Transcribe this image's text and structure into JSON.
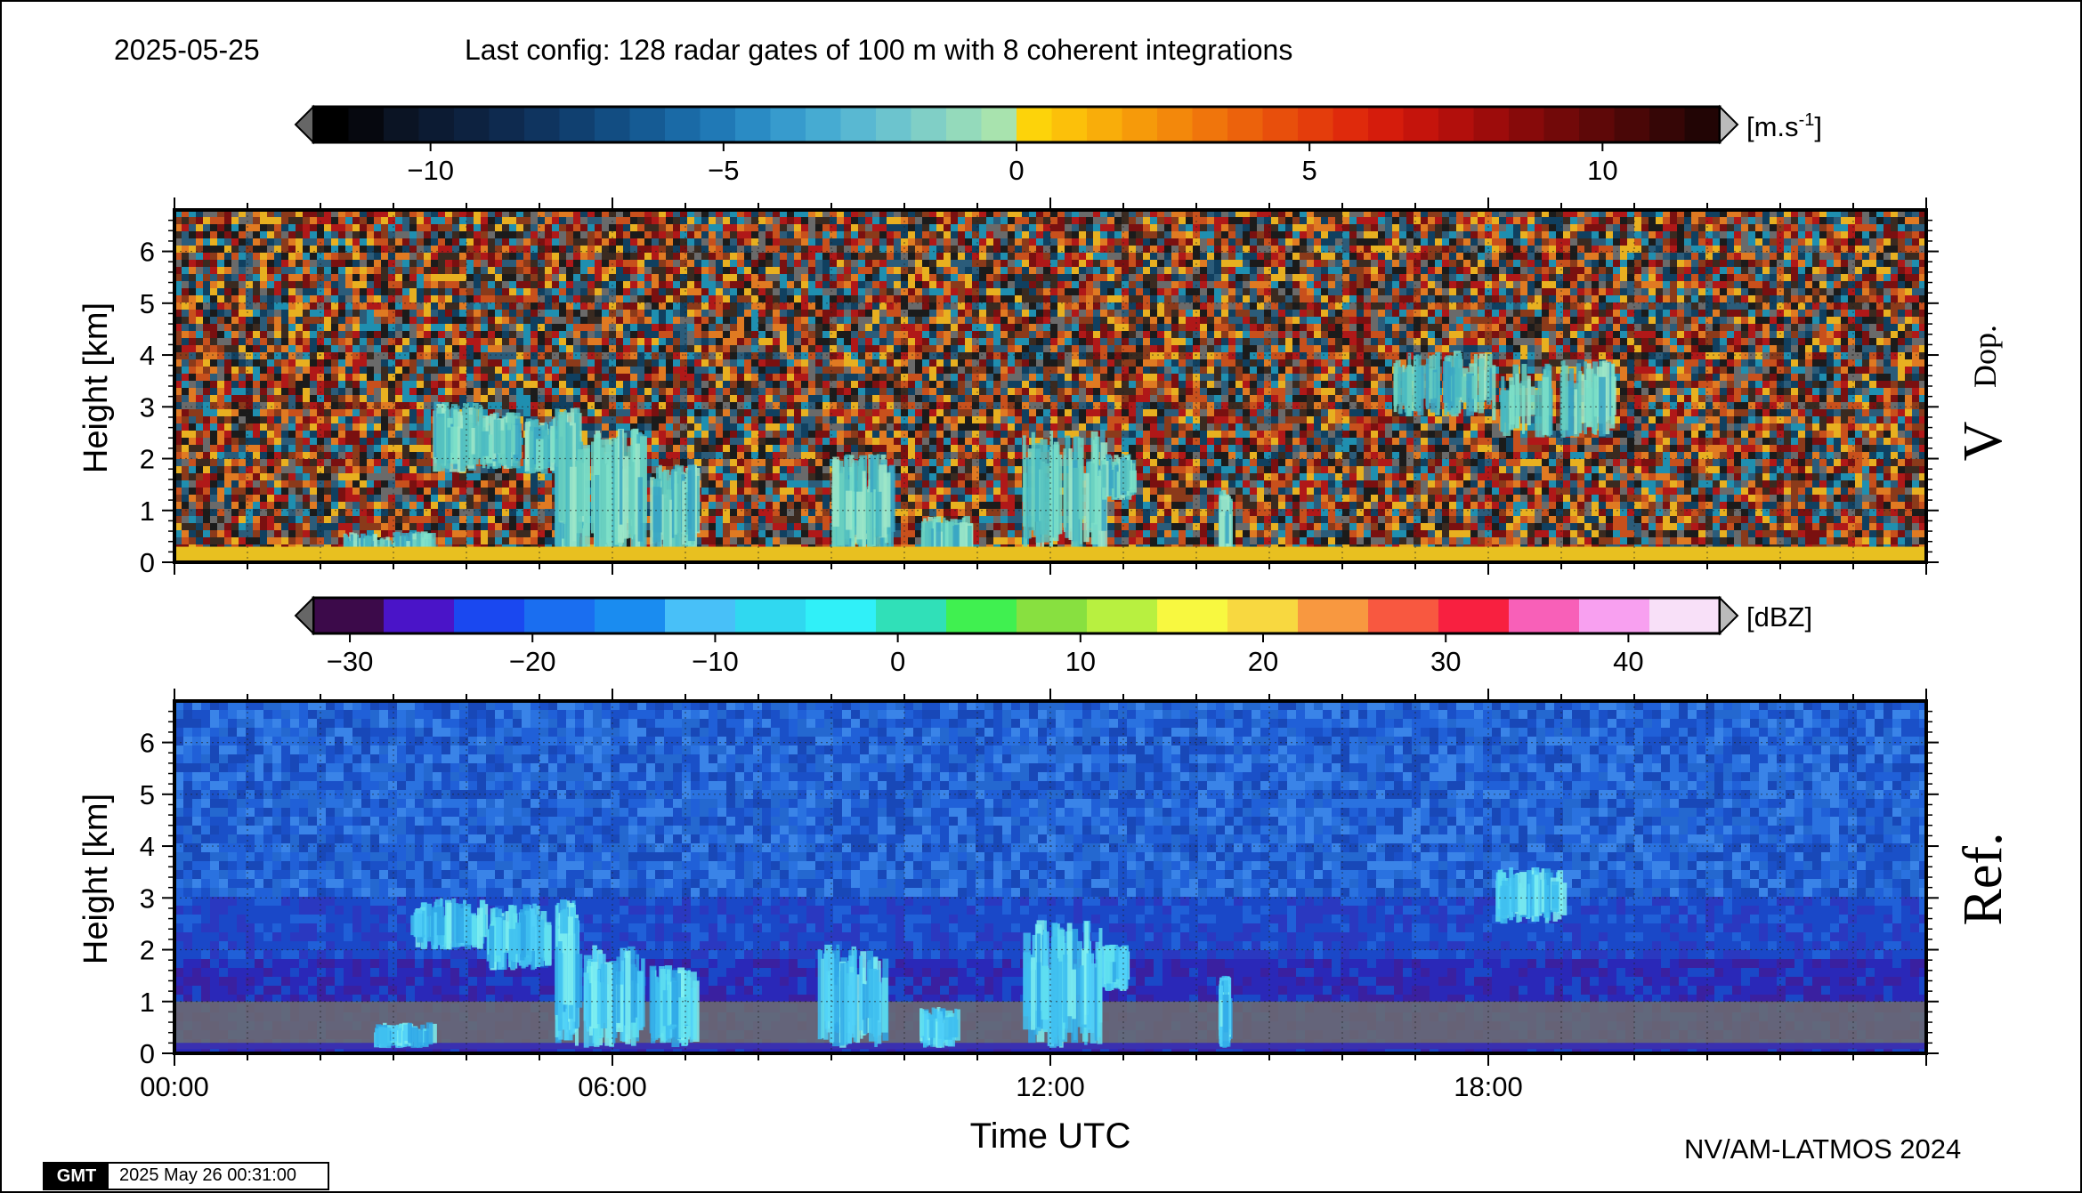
{
  "header": {
    "date": "2025-05-25",
    "config": "Last config: 128 radar gates of 100 m with 8 coherent integrations"
  },
  "footer": {
    "credit": "NV/AM-LATMOS 2024",
    "gmt_logo": "GMT",
    "timestamp": "2025 May 26 00:31:00"
  },
  "colors": {
    "noise": [
      "#1b1b1b",
      "#3a2a20",
      "#8b3a1a",
      "#c8501c",
      "#e07a22",
      "#b01818",
      "#2b5c7a",
      "#1f8fb0",
      "#6a6a6a",
      "#e8b020",
      "#7a1010",
      "#104060"
    ],
    "cloud_doppler": [
      "#6ad0c0",
      "#56c2c0",
      "#7ee0c8",
      "#3aa6c4",
      "#9ee6c8",
      "#48b8c2"
    ],
    "surface_doppler": "#e8c020",
    "ref_noise": [
      "#2060d8",
      "#1a50c8",
      "#2a72e0",
      "#1848b8",
      "#3a84e8",
      "#2468d0"
    ],
    "ref_cloud": [
      "#40c0f0",
      "#60e0f0",
      "#30a8e8",
      "#80f0f0",
      "#50d0f8"
    ],
    "ref_ground": "#6e6e6e"
  },
  "chart_data": [
    {
      "type": "heatmap",
      "title": "",
      "panel_label": "V",
      "panel_label_sub": "Dop.",
      "xlabel": "",
      "ylabel": "Height [km]",
      "xlim": [
        0,
        24
      ],
      "ylim": [
        0,
        6.8
      ],
      "yticks": [
        0,
        1,
        2,
        3,
        4,
        5,
        6
      ],
      "grid": true,
      "colorbar": {
        "unit": "[m.s",
        "unit_sup": "-1",
        "unit_end": "]",
        "range": [
          -12,
          12
        ],
        "ticks": [
          -10,
          -5,
          0,
          5,
          10
        ],
        "tick_labels": [
          "−10",
          "−5",
          "0",
          "5",
          "10"
        ],
        "colors": [
          "#000000",
          "#06080f",
          "#0b1424",
          "#0c1b33",
          "#0d2240",
          "#0e2a4f",
          "#0f345f",
          "#104070",
          "#124d82",
          "#155b94",
          "#1a6aa6",
          "#2079b6",
          "#2a8bc4",
          "#379bcd",
          "#46abd2",
          "#59b8d2",
          "#6cc4ce",
          "#80cfc6",
          "#94dabb",
          "#a8e3ae",
          "#fdd30a",
          "#fcc00a",
          "#f9ad0a",
          "#f69a0a",
          "#f3880b",
          "#f0750c",
          "#ec620c",
          "#e84f0c",
          "#e43d0c",
          "#df2a0c",
          "#d51c0c",
          "#c5140c",
          "#b20f0c",
          "#9d0c0b",
          "#870a0a",
          "#720909",
          "#5e0808",
          "#4a0707",
          "#360606",
          "#220505"
        ]
      },
      "cloud_features": [
        {
          "t0": 3.5,
          "t1": 4.2,
          "z0": 1.7,
          "z1": 3.1
        },
        {
          "t0": 4.2,
          "t1": 4.7,
          "z0": 1.8,
          "z1": 2.9
        },
        {
          "t0": 4.8,
          "t1": 5.3,
          "z0": 1.7,
          "z1": 2.8
        },
        {
          "t0": 5.2,
          "t1": 5.6,
          "z0": 0.1,
          "z1": 3.0
        },
        {
          "t0": 5.7,
          "t1": 6.4,
          "z0": 0.1,
          "z1": 2.6
        },
        {
          "t0": 6.5,
          "t1": 7.1,
          "z0": 0.1,
          "z1": 1.9
        },
        {
          "t0": 9.0,
          "t1": 9.8,
          "z0": 0.1,
          "z1": 2.1
        },
        {
          "t0": 10.2,
          "t1": 10.9,
          "z0": 0.1,
          "z1": 0.9
        },
        {
          "t0": 11.6,
          "t1": 12.7,
          "z0": 0.1,
          "z1": 2.6
        },
        {
          "t0": 12.7,
          "t1": 13.1,
          "z0": 1.2,
          "z1": 2.1
        },
        {
          "t0": 14.3,
          "t1": 14.4,
          "z0": 0.1,
          "z1": 1.4
        },
        {
          "t0": 16.7,
          "t1": 18.0,
          "z0": 2.8,
          "z1": 4.1
        },
        {
          "t0": 18.0,
          "t1": 19.7,
          "z0": 2.4,
          "z1": 3.9
        },
        {
          "t0": 2.3,
          "t1": 3.5,
          "z0": 0.1,
          "z1": 0.6
        }
      ]
    },
    {
      "type": "heatmap",
      "title": "",
      "panel_label": "Ref.",
      "xlabel": "Time UTC",
      "ylabel": "Height [km]",
      "xlim": [
        0,
        24
      ],
      "ylim": [
        0,
        6.8
      ],
      "xticks": [
        0,
        6,
        12,
        18
      ],
      "xtick_labels": [
        "00:00",
        "06:00",
        "12:00",
        "18:00"
      ],
      "yticks": [
        0,
        1,
        2,
        3,
        4,
        5,
        6
      ],
      "grid": true,
      "colorbar": {
        "unit": "[dBZ]",
        "range": [
          -32,
          45
        ],
        "ticks": [
          -30,
          -20,
          -10,
          0,
          10,
          20,
          30,
          40
        ],
        "tick_labels": [
          "−30",
          "−20",
          "−10",
          "0",
          "10",
          "20",
          "30",
          "40"
        ],
        "colors": [
          "#3c0a4a",
          "#4a14c8",
          "#1a48f0",
          "#1a6ef0",
          "#1a8cf0",
          "#48c0f8",
          "#30d8f0",
          "#30f0f8",
          "#30e0b8",
          "#40f050",
          "#88e040",
          "#b8f040",
          "#f8f840",
          "#f8d840",
          "#f89840",
          "#f85840",
          "#f82040",
          "#f860b8",
          "#f8a0f0",
          "#f8e0f8"
        ]
      },
      "cloud_features": [
        {
          "t0": 3.2,
          "t1": 4.2,
          "z0": 2.0,
          "z1": 3.0
        },
        {
          "t0": 4.2,
          "t1": 5.1,
          "z0": 1.6,
          "z1": 2.9
        },
        {
          "t0": 5.2,
          "t1": 5.5,
          "z0": 0.1,
          "z1": 3.0
        },
        {
          "t0": 5.6,
          "t1": 6.4,
          "z0": 0.1,
          "z1": 2.1
        },
        {
          "t0": 6.5,
          "t1": 7.1,
          "z0": 0.1,
          "z1": 1.7
        },
        {
          "t0": 8.8,
          "t1": 9.7,
          "z0": 0.1,
          "z1": 2.1
        },
        {
          "t0": 10.2,
          "t1": 10.7,
          "z0": 0.1,
          "z1": 0.9
        },
        {
          "t0": 11.6,
          "t1": 12.7,
          "z0": 0.1,
          "z1": 2.6
        },
        {
          "t0": 12.7,
          "t1": 13.0,
          "z0": 1.2,
          "z1": 2.1
        },
        {
          "t0": 14.3,
          "t1": 14.4,
          "z0": 0.1,
          "z1": 1.5
        },
        {
          "t0": 18.1,
          "t1": 19.0,
          "z0": 2.5,
          "z1": 3.6
        },
        {
          "t0": 2.7,
          "t1": 3.5,
          "z0": 0.1,
          "z1": 0.6
        }
      ]
    }
  ]
}
